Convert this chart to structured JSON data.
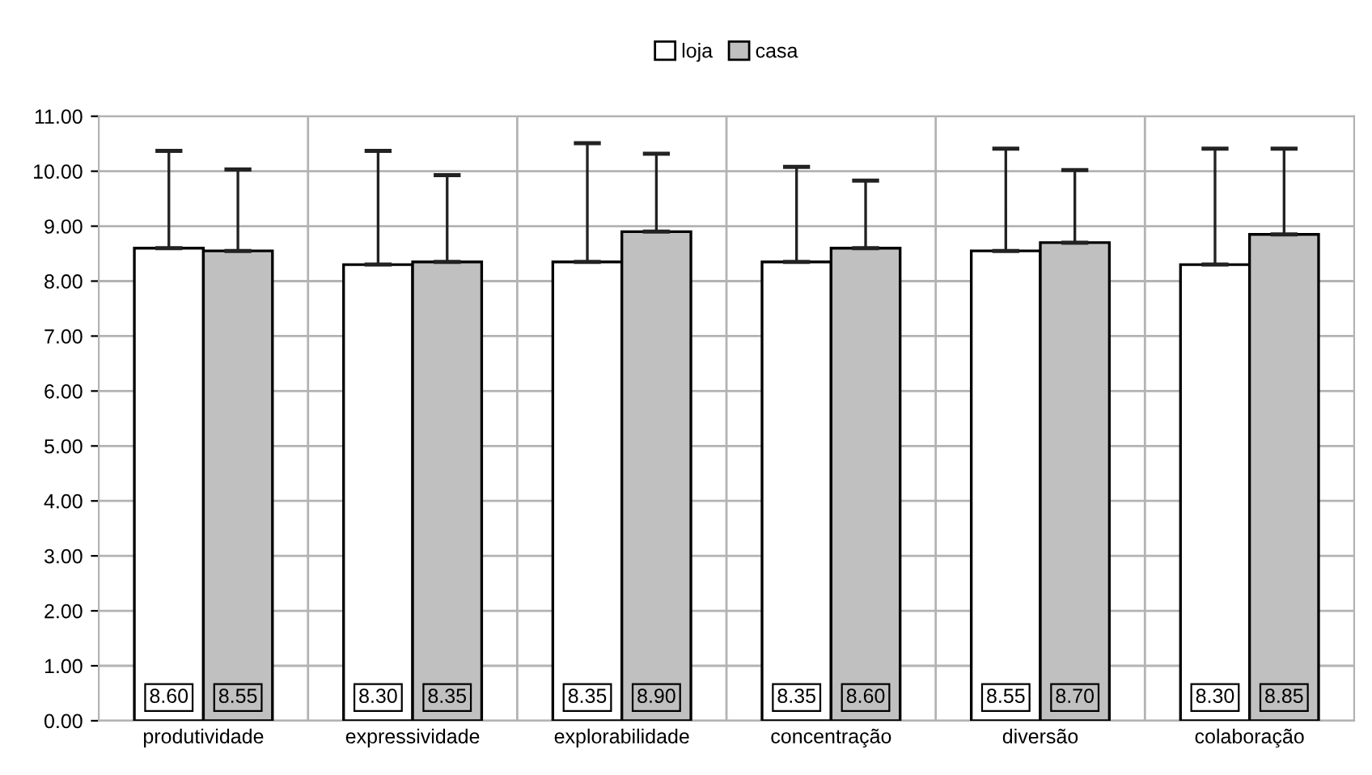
{
  "chart_data": {
    "type": "bar",
    "categories": [
      "produtividade",
      "expressividade",
      "explorabilidade",
      "concentração",
      "diversão",
      "colaboração"
    ],
    "series": [
      {
        "name": "loja",
        "color": "#ffffff",
        "values": [
          8.6,
          8.3,
          8.35,
          8.35,
          8.55,
          8.3
        ],
        "errors": [
          [
            8.6,
            10.37
          ],
          [
            8.3,
            10.37
          ],
          [
            8.35,
            10.51
          ],
          [
            8.35,
            10.08
          ],
          [
            8.55,
            10.41
          ],
          [
            8.3,
            10.41
          ]
        ],
        "value_labels": [
          "8.60",
          "8.30",
          "8.35",
          "8.35",
          "8.55",
          "8.30"
        ]
      },
      {
        "name": "casa",
        "color": "#c0c0c0",
        "values": [
          8.55,
          8.35,
          8.9,
          8.6,
          8.7,
          8.85
        ],
        "errors": [
          [
            8.55,
            10.03
          ],
          [
            8.35,
            9.93
          ],
          [
            8.9,
            10.32
          ],
          [
            8.6,
            9.83
          ],
          [
            8.7,
            10.02
          ],
          [
            8.85,
            10.41
          ]
        ],
        "value_labels": [
          "8.55",
          "8.35",
          "8.90",
          "8.60",
          "8.70",
          "8.85"
        ]
      }
    ],
    "ylim": [
      0,
      11
    ],
    "yticks": [
      {
        "value": 0,
        "label": "0.00"
      },
      {
        "value": 1,
        "label": "1.00"
      },
      {
        "value": 2,
        "label": "2.00"
      },
      {
        "value": 3,
        "label": "3.00"
      },
      {
        "value": 4,
        "label": "4.00"
      },
      {
        "value": 5,
        "label": "5.00"
      },
      {
        "value": 6,
        "label": "6.00"
      },
      {
        "value": 7,
        "label": "7.00"
      },
      {
        "value": 8,
        "label": "8.00"
      },
      {
        "value": 9,
        "label": "9.00"
      },
      {
        "value": 10,
        "label": "10.00"
      },
      {
        "value": 11,
        "label": "11.00"
      }
    ],
    "grid": true,
    "legend": "top"
  }
}
